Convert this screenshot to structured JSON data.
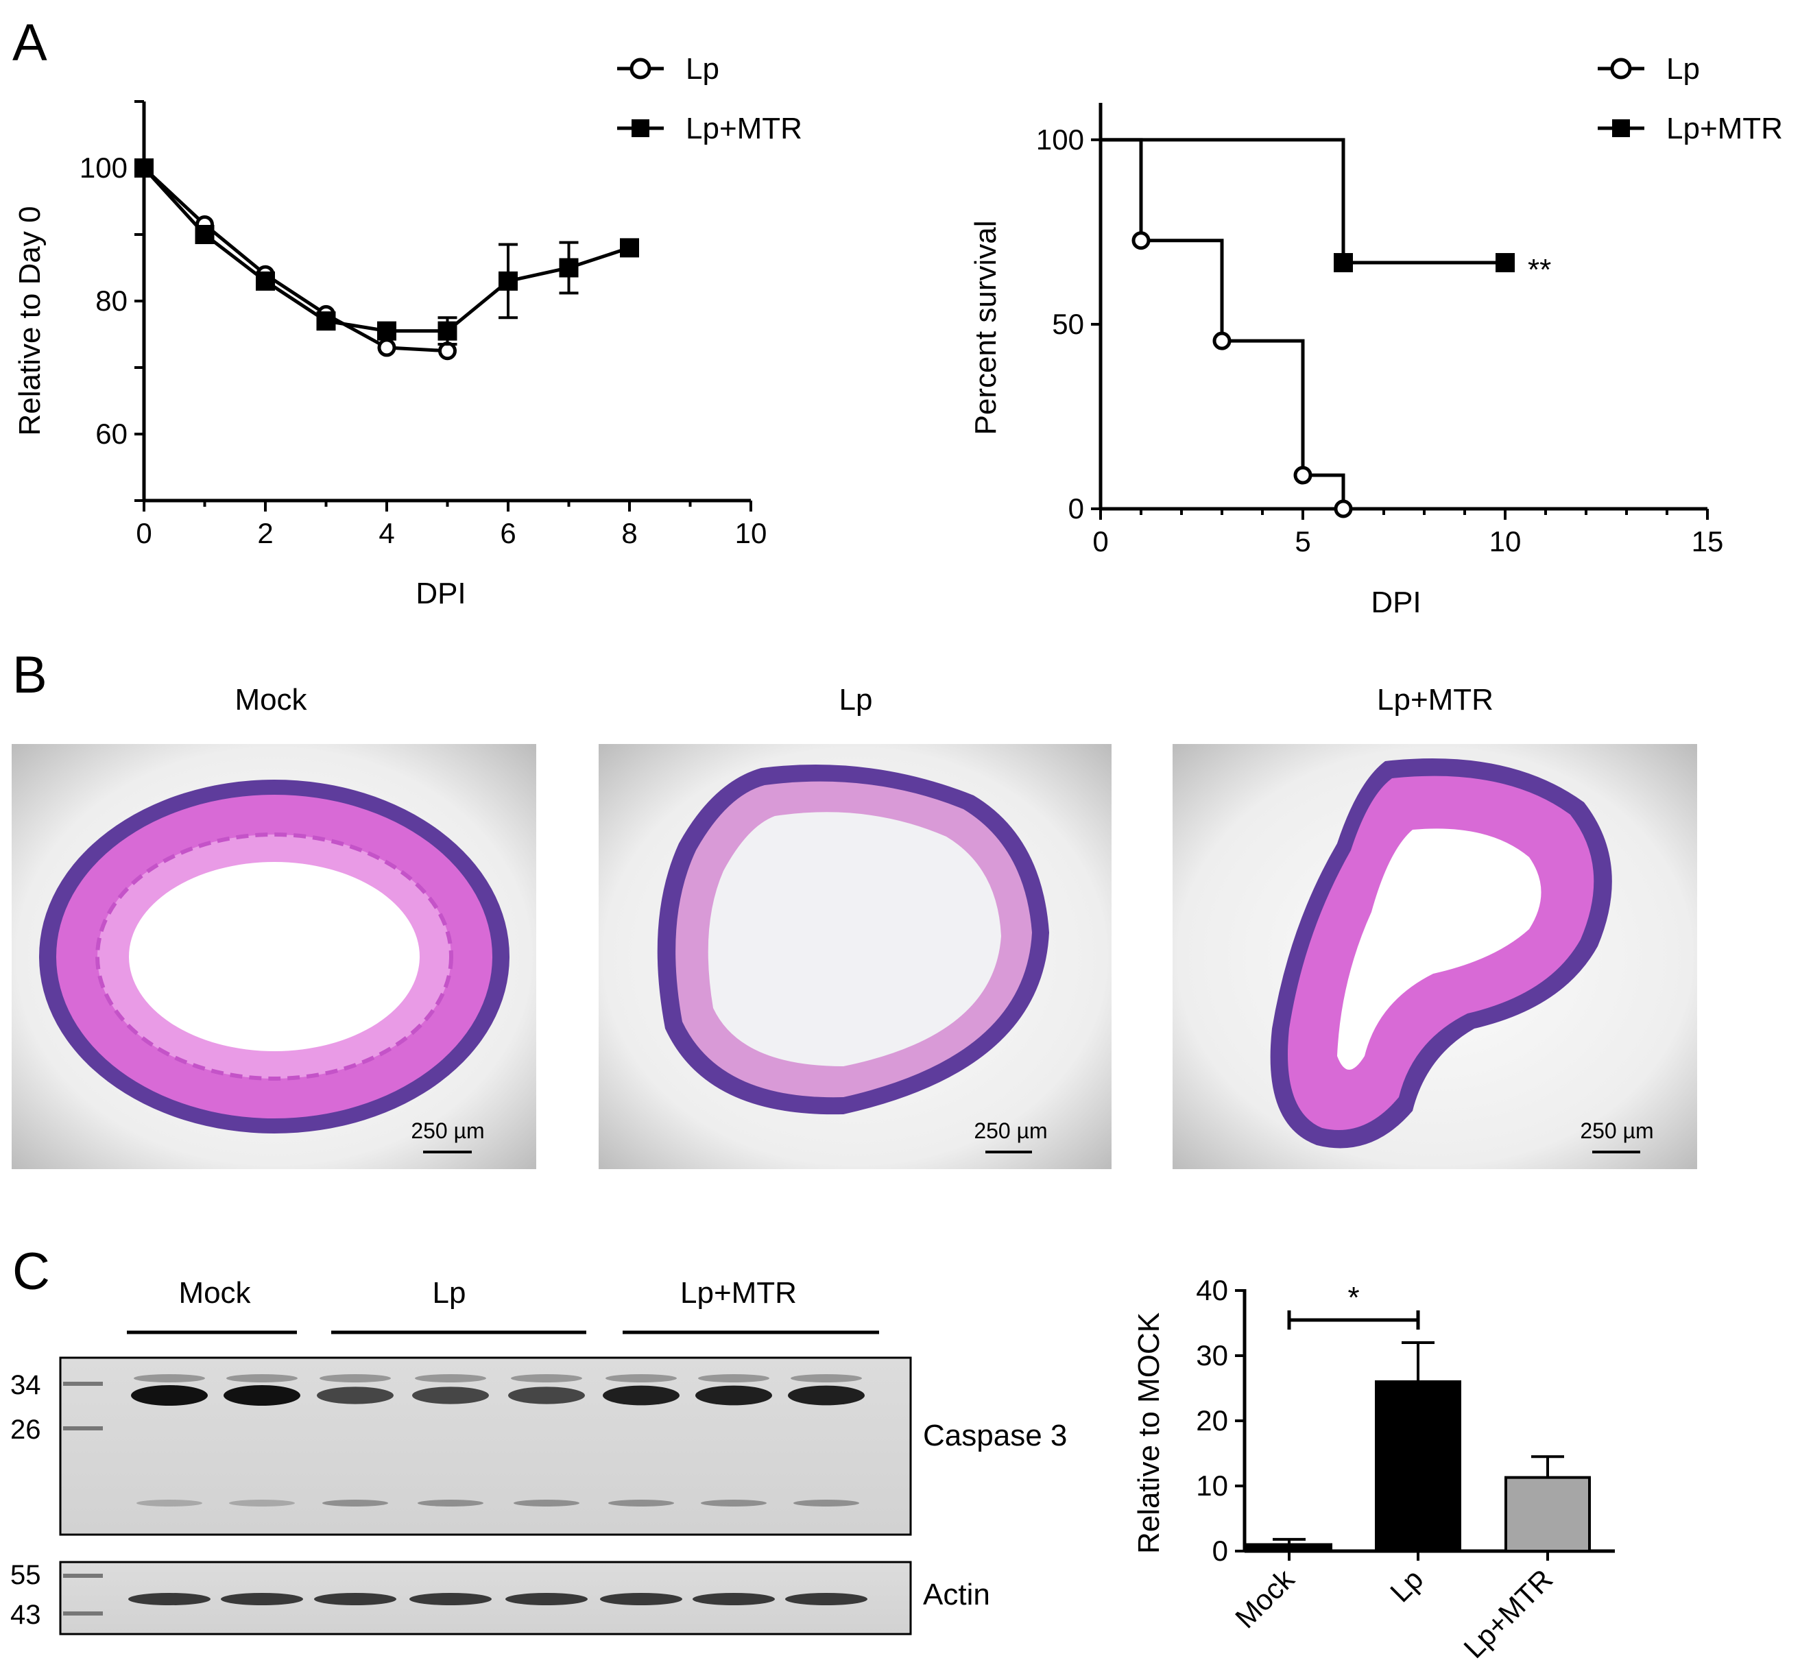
{
  "panels": {
    "a": {
      "letter": "A"
    },
    "b": {
      "letter": "B",
      "titles": [
        "Mock",
        "Lp",
        "Lp+MTR"
      ],
      "scale_bar": "250 µm"
    },
    "c": {
      "letter": "C",
      "lane_groups": [
        "Mock",
        "Lp",
        "Lp+MTR"
      ],
      "markers_top": [
        "34",
        "26"
      ],
      "markers_bottom": [
        "55",
        "43"
      ],
      "blot_labels": [
        "Caspase 3",
        "Actin"
      ]
    }
  },
  "chart_data": [
    {
      "type": "line",
      "title": "",
      "xlabel": "DPI",
      "ylabel": "Relative to Day 0",
      "xlim": [
        0,
        10
      ],
      "ylim": [
        50,
        110
      ],
      "xticks": [
        0,
        2,
        4,
        6,
        8,
        10
      ],
      "yticks": [
        60,
        80,
        100
      ],
      "legend": "top-right",
      "series": [
        {
          "name": "Lp",
          "marker": "open-circle",
          "x": [
            0,
            1,
            2,
            3,
            4,
            5
          ],
          "y": [
            100,
            91.5,
            84,
            78,
            73,
            72.5
          ],
          "err": [
            0,
            0,
            0,
            0,
            0,
            0
          ]
        },
        {
          "name": "Lp+MTR",
          "marker": "filled-square",
          "x": [
            0,
            1,
            2,
            3,
            4,
            5,
            6,
            7,
            8
          ],
          "y": [
            100,
            90,
            83,
            77,
            75.5,
            75.5,
            83,
            85,
            88
          ],
          "err": [
            0,
            0,
            0,
            0,
            0,
            2,
            5.5,
            3.8,
            0
          ]
        }
      ]
    },
    {
      "type": "line",
      "subtype": "survival-step",
      "title": "",
      "xlabel": "DPI",
      "ylabel": "Percent survival",
      "xlim": [
        0,
        15
      ],
      "ylim": [
        0,
        110
      ],
      "xticks": [
        0,
        5,
        10,
        15
      ],
      "yticks": [
        0,
        50,
        100
      ],
      "legend": "top-right",
      "annotation": "**",
      "series": [
        {
          "name": "Lp",
          "marker": "open-circle",
          "x": [
            0,
            1,
            3,
            5,
            6
          ],
          "y": [
            100,
            72.7,
            45.5,
            9.1,
            0
          ],
          "markers": [
            [
              1,
              72.7
            ],
            [
              3,
              45.5
            ],
            [
              5,
              9.1
            ],
            [
              6,
              0
            ]
          ]
        },
        {
          "name": "Lp+MTR",
          "marker": "filled-square",
          "x": [
            0,
            6,
            10
          ],
          "y": [
            100,
            66.7,
            66.7
          ],
          "markers": [
            [
              6,
              66.7
            ],
            [
              10,
              66.7
            ]
          ]
        }
      ]
    },
    {
      "type": "bar",
      "title": "",
      "xlabel": "",
      "ylabel": "Relative to MOCK",
      "ylim": [
        0,
        40
      ],
      "yticks": [
        0,
        10,
        20,
        30,
        40
      ],
      "categories": [
        "Mock",
        "Lp",
        "Lp+MTR"
      ],
      "values": [
        1,
        26,
        11.3
      ],
      "errors": [
        0.8,
        6,
        3.2
      ],
      "colors": [
        "#000000",
        "#000000",
        "#a6a6a6"
      ],
      "significance": {
        "between": [
          "Mock",
          "Lp"
        ],
        "label": "*"
      }
    }
  ]
}
